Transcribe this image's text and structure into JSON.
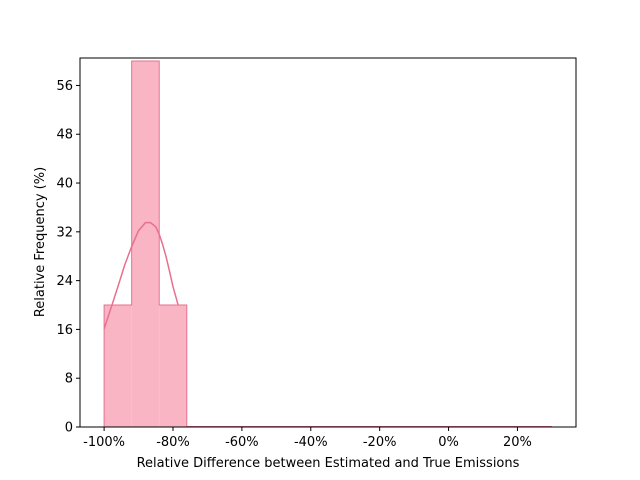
{
  "chart_data": {
    "type": "bar",
    "title": "",
    "xlabel": "Relative Difference between Estimated and True Emissions",
    "ylabel": "Relative Frequency (%)",
    "xlim": [
      -107,
      37
    ],
    "ylim": [
      0,
      60.5
    ],
    "x_ticks": [
      {
        "value": -100,
        "label": "-100%"
      },
      {
        "value": -80,
        "label": "-80%"
      },
      {
        "value": -60,
        "label": "-60%"
      },
      {
        "value": -40,
        "label": "-40%"
      },
      {
        "value": -20,
        "label": "-20%"
      },
      {
        "value": 0,
        "label": "0%"
      },
      {
        "value": 20,
        "label": "20%"
      }
    ],
    "y_ticks": [
      0,
      8,
      16,
      24,
      32,
      40,
      48,
      56
    ],
    "histogram": {
      "bin_edges": [
        -100,
        -92,
        -84,
        -76
      ],
      "values": [
        20,
        60,
        20
      ],
      "zero_line_end": 30
    },
    "kde": {
      "x": [
        -100,
        -98,
        -96,
        -94,
        -92,
        -90,
        -88,
        -86.5,
        -85,
        -84,
        -83,
        -82,
        -81,
        -80,
        -79,
        -78.5
      ],
      "y": [
        16.1,
        19.5,
        23.0,
        26.6,
        29.6,
        32.2,
        33.5,
        33.5,
        32.8,
        31.6,
        29.9,
        27.9,
        25.5,
        23.0,
        21.0,
        20.0
      ]
    },
    "colors": {
      "bar_fill": "#f9b5c3",
      "bar_edge": "#e6718f",
      "kde_line": "#e8708d",
      "axis": "#000000"
    },
    "grid": false,
    "legend": "none"
  }
}
